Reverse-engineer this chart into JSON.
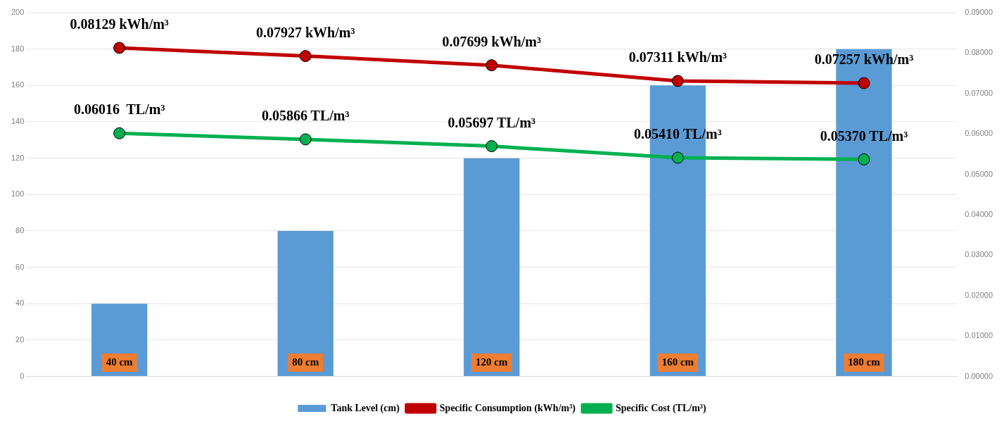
{
  "chart_data": {
    "type": "bar",
    "categories": [
      null,
      null,
      null,
      null,
      null
    ],
    "series": [
      {
        "name": "Tank Level (cm)",
        "color": "#5b9bd5",
        "values": [
          40,
          80,
          120,
          160,
          180
        ],
        "value_labels": [
          "40 cm",
          "80 cm",
          "120 cm",
          "160 cm",
          "180 cm"
        ]
      },
      {
        "name": "Specific Consumption (kWh/m³)",
        "type": "line",
        "axis": "y2",
        "color": "#c00000",
        "values": [
          0.08129,
          0.07927,
          0.07699,
          0.07311,
          0.07257
        ],
        "value_labels": [
          "0.08129 kWh/m³",
          "0.07927 kWh/m³",
          "0.07699 kWh/m³",
          "0.07311 kWh/m³",
          "0.07257 kWh/m³"
        ]
      },
      {
        "name": "Specific Cost (TL/m³)",
        "type": "line",
        "axis": "y2",
        "color": "#00b050",
        "values": [
          0.06016,
          0.05866,
          0.05697,
          0.0541,
          0.0537
        ],
        "value_labels": [
          "0.06016  TL/m³",
          "0.05866 TL/m³",
          "0.05697 TL/m³",
          "0.05410 TL/m³",
          "0.05370 TL/m³"
        ]
      }
    ],
    "ylim": [
      0,
      200
    ],
    "yticks": [
      0,
      20,
      40,
      60,
      80,
      100,
      120,
      140,
      160,
      180,
      200
    ],
    "y2lim": [
      0,
      0.09
    ],
    "y2ticks": [
      {
        "value": 0,
        "label": "0.00000"
      },
      {
        "value": 0.01,
        "label": "0.01000"
      },
      {
        "value": 0.02,
        "label": "0.02000"
      },
      {
        "value": 0.03,
        "label": "0.03000"
      },
      {
        "value": 0.04,
        "label": "0.04000"
      },
      {
        "value": 0.05,
        "label": "0.05000"
      },
      {
        "value": 0.06,
        "label": "0.06000"
      },
      {
        "value": 0.07,
        "label": "0.07000"
      },
      {
        "value": 0.08,
        "label": "0.08000"
      },
      {
        "value": 0.09,
        "label": "0.09000"
      }
    ],
    "grid": "y",
    "legend": "bottom",
    "marker": "circle",
    "line_style": "solid"
  }
}
